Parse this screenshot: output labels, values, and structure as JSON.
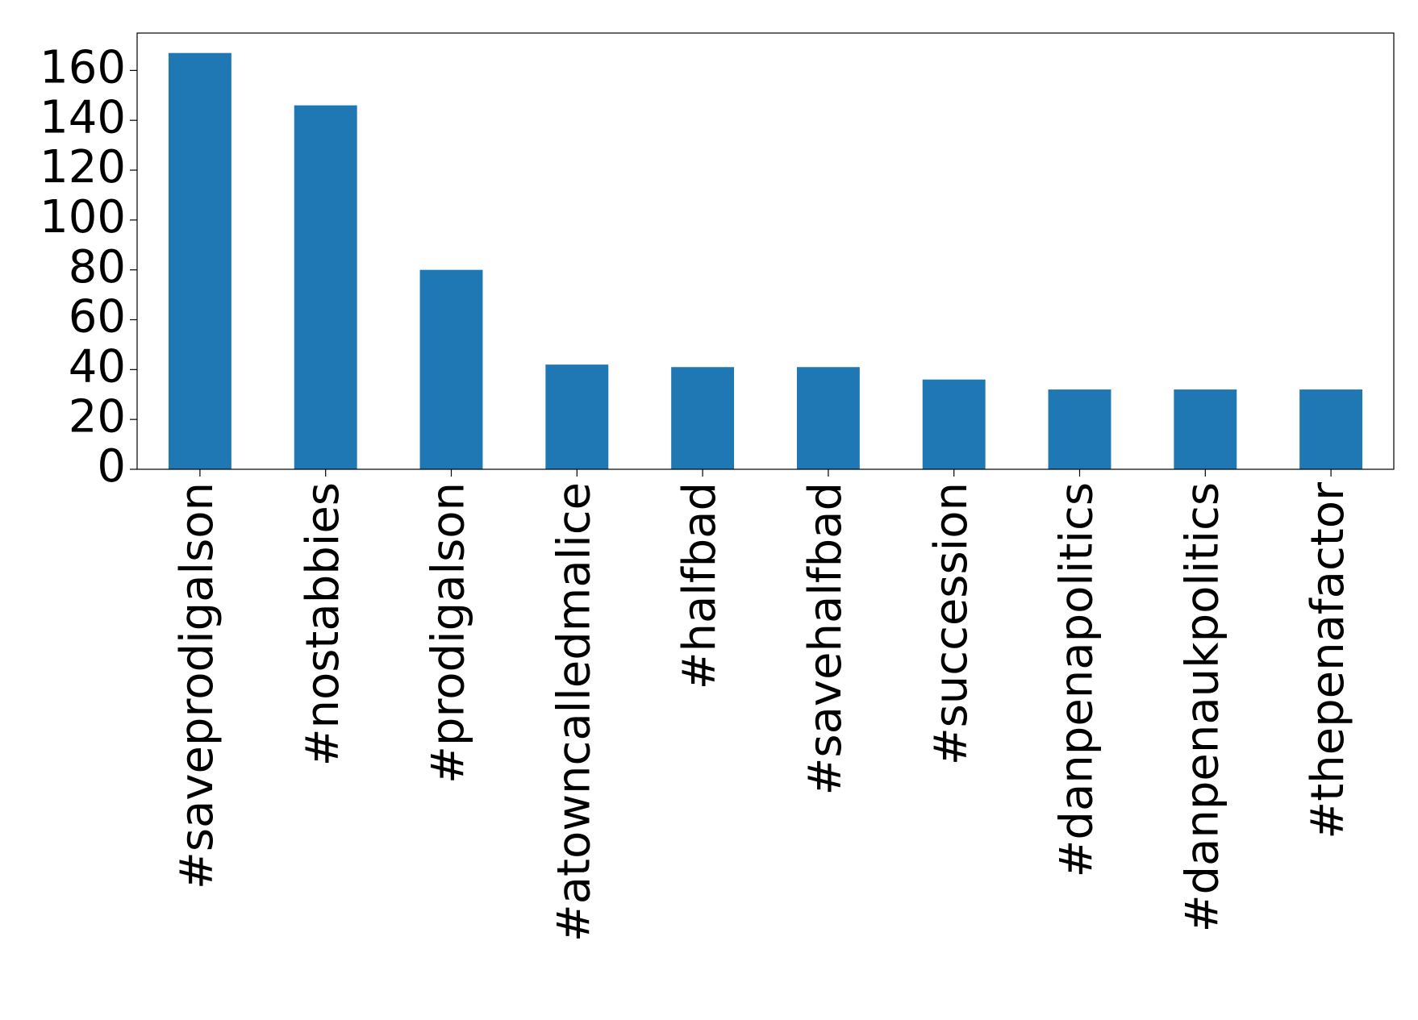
{
  "chart_data": {
    "type": "bar",
    "categories": [
      "#saveprodigalson",
      "#nostabbies",
      "#prodigalson",
      "#atowncalledmalice",
      "#halfbad",
      "#savehalfbad",
      "#succession",
      "#danpenapolitics",
      "#danpenaukpolitics",
      "#thepenafactor"
    ],
    "values": [
      167,
      146,
      80,
      42,
      41,
      41,
      36,
      32,
      32,
      32
    ],
    "color": "#1f77b4",
    "ylim": [
      0,
      175
    ],
    "yticks": [
      0,
      20,
      40,
      60,
      80,
      100,
      120,
      140,
      160
    ],
    "grid": false
  }
}
